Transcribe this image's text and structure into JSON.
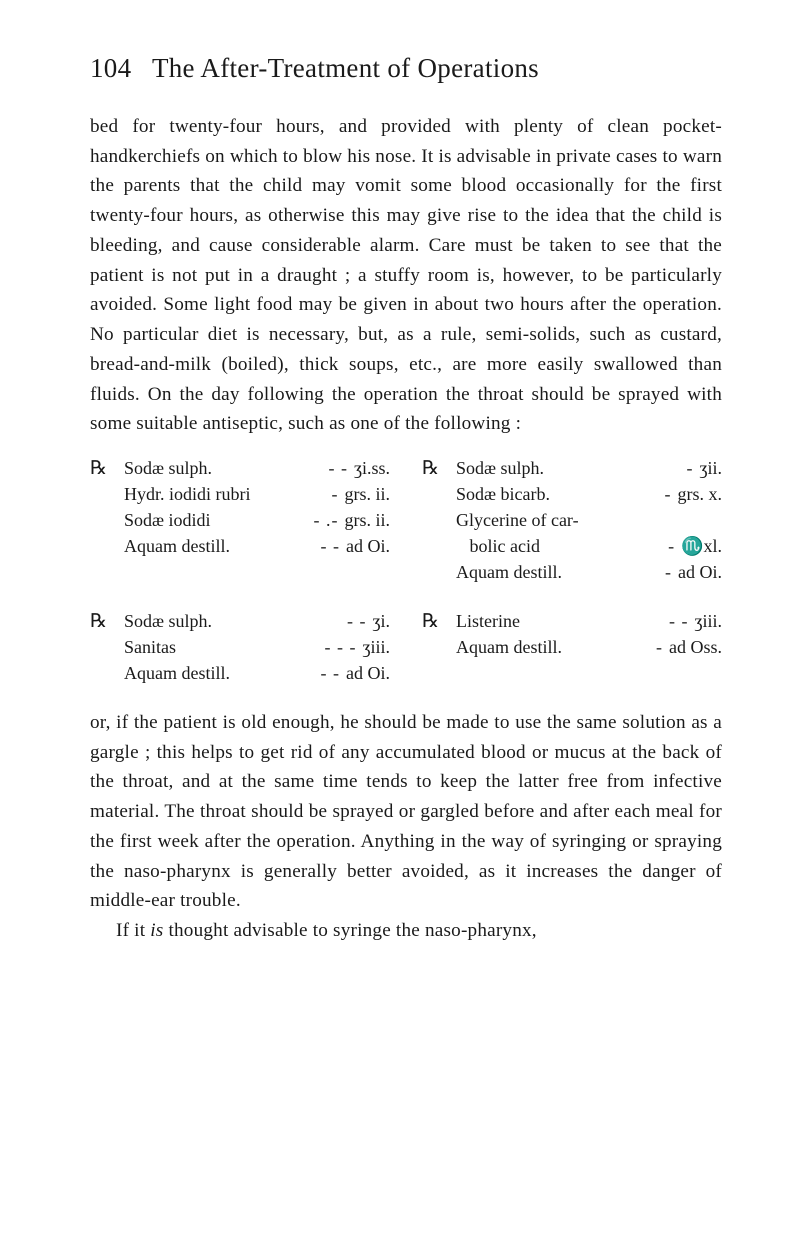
{
  "page": {
    "number": "104",
    "title": "The After-Treatment of Operations"
  },
  "paragraphs": {
    "p1": "bed for twenty-four hours, and provided with plenty of clean pocket-handkerchiefs on which to blow his nose. It is advisable in private cases to warn the parents that the child may vomit some blood occasionally for the first twenty-four hours, as otherwise this may give rise to the idea that the child is bleeding, and cause considerable alarm.  Care must be taken to see that the patient is not put in a draught ; a stuffy room is, however, to be particularly avoided.  Some light food may be given in about two hours after the operation.  No particular diet is necessary, but, as a rule, semi-solids, such as custard, bread-and-milk (boiled), thick soups, etc., are more easily swallowed than fluids.  On the day following the operation the throat should be sprayed with some suitable antiseptic, such as one of the following :",
    "p2a": "or, if the patient is old enough, he should be made to use the same solution as a gargle ; this helps to get rid of any accumulated blood or mucus at the back of the throat, and at the same time tends to keep the latter free from infective material.  The throat should be sprayed or gargled before and after each meal for the first week after the operation.  Anything in the way of syringing or spraying the naso-pharynx is generally better avoided, as it increases the danger of middle-ear trouble.",
    "p2b_pre": "If it ",
    "p2b_it": "is",
    "p2b_post": " thought advisable to syringe the naso-pharynx,"
  },
  "rx_symbol": "℞",
  "prescriptions": {
    "row1": {
      "left": {
        "items": [
          {
            "name": "Sodæ sulph.",
            "sep": "-       -",
            "amount": "ʒi.ss."
          },
          {
            "name": "Hydr. iodidi rubri",
            "sep": "-",
            "amount": "grs. ii."
          },
          {
            "name": "Sodæ iodidi",
            "sep": "-      .-",
            "amount": "grs. ii."
          },
          {
            "name": "Aquam destill.",
            "sep": "-       -",
            "amount": "ad Oi."
          }
        ]
      },
      "right": {
        "items": [
          {
            "name": "Sodæ sulph.",
            "sep": "-",
            "amount": "ʒii."
          },
          {
            "name": "Sodæ bicarb.",
            "sep": "-",
            "amount": "grs. x."
          },
          {
            "name": "Glycerine of car-",
            "sep": "",
            "amount": ""
          },
          {
            "name": "   bolic acid",
            "sep": "-",
            "amount": "♏xl."
          },
          {
            "name": "Aquam destill.",
            "sep": "-",
            "amount": "ad Oi."
          }
        ]
      }
    },
    "row2": {
      "left": {
        "items": [
          {
            "name": "Sodæ sulph.",
            "sep": "-       -",
            "amount": "ʒi."
          },
          {
            "name": "Sanitas",
            "sep": "-       -       -",
            "amount": "ʒiii."
          },
          {
            "name": "Aquam destill.",
            "sep": "-       -",
            "amount": "ad Oi."
          }
        ]
      },
      "right": {
        "items": [
          {
            "name": "Listerine",
            "sep": "-       -",
            "amount": "ʒiii."
          },
          {
            "name": "Aquam destill.",
            "sep": "-",
            "amount": "ad Oss."
          }
        ]
      }
    }
  }
}
